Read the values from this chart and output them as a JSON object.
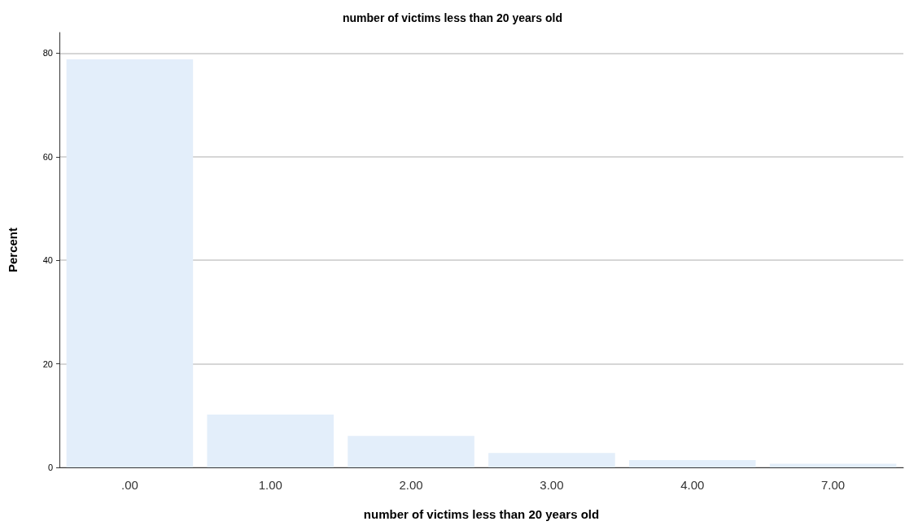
{
  "chart_data": {
    "type": "bar",
    "title": "number of victims less than 20 years old",
    "xlabel": "number of victims less than 20 years old",
    "ylabel": "Percent",
    "categories": [
      ".00",
      "1.00",
      "2.00",
      "3.00",
      "4.00",
      "7.00"
    ],
    "values": [
      78.8,
      10.2,
      6.1,
      2.8,
      1.4,
      0.7
    ],
    "color": "#e3eefa",
    "ylim": [
      0,
      84
    ],
    "yticks": [
      0,
      20,
      40,
      60,
      80
    ],
    "grid": "y"
  }
}
